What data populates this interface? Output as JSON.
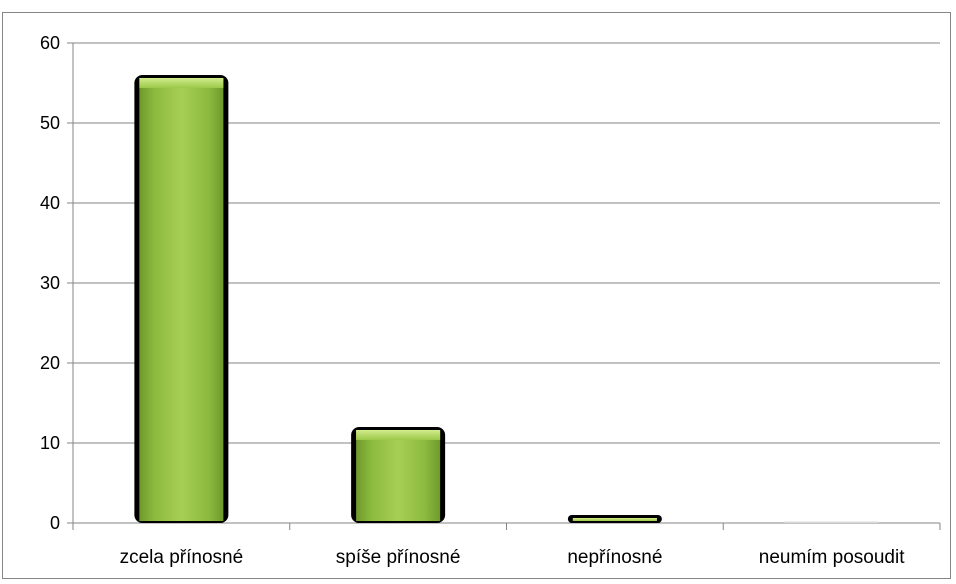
{
  "chart_data": {
    "type": "bar",
    "title": "",
    "xlabel": "",
    "ylabel": "",
    "categories": [
      "zcela přínosné",
      "spíše přínosné",
      "nepřínosné",
      "neumím posoudit"
    ],
    "values": [
      56,
      12,
      1,
      0
    ],
    "ylim": [
      0,
      60
    ],
    "yticks": [
      0,
      10,
      20,
      30,
      40,
      50,
      60
    ],
    "grid": true,
    "legend": "none",
    "bar_color": "#8cba3e",
    "bar_highlight": "#b7dc6a",
    "bar_edge": "#000000",
    "gridline_color": "#868686"
  }
}
